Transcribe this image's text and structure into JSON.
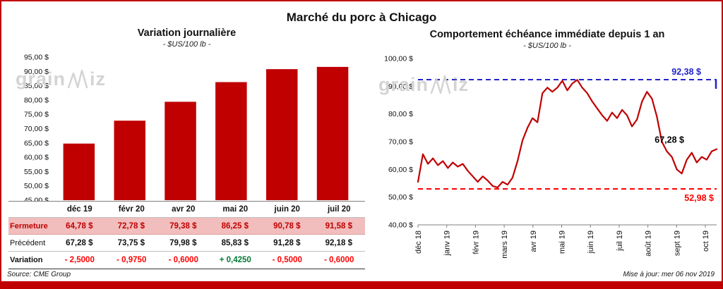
{
  "page": {
    "title": "Marché du porc à Chicago",
    "source": "Source: CME Group",
    "updated": "Mise à jour: mer 06 nov 2019",
    "watermark": {
      "prefix": "grain",
      "suffix": "iz"
    }
  },
  "colors": {
    "bar": "#C00000",
    "line": "#C00000",
    "resistance": "#2222CC",
    "support": "#FF0000",
    "highlight_row_bg": "#F2BDBD",
    "negative": "#FF0000",
    "positive": "#007A33",
    "accent_border": "#C00000"
  },
  "chart_data": [
    {
      "type": "bar",
      "title": "Variation journalière",
      "subtitle": "- $US/100 lb -",
      "categories": [
        "déc 19",
        "févr 20",
        "avr 20",
        "mai 20",
        "juin 20",
        "juil 20"
      ],
      "values": [
        64.78,
        72.78,
        79.38,
        86.25,
        90.78,
        91.58
      ],
      "ylim": [
        45,
        95
      ],
      "ytick_step": 5,
      "ytick_labels": [
        "95,00 $",
        "90,00 $",
        "85,00 $",
        "80,00 $",
        "75,00 $",
        "70,00 $",
        "65,00 $",
        "60,00 $",
        "55,00 $",
        "50,00 $",
        "45,00 $"
      ],
      "grid": false,
      "legend": false
    },
    {
      "type": "line",
      "title": "Comportement échéance immédiate depuis 1 an",
      "subtitle": "- $US/100 lb -",
      "x_labels": [
        "déc 18",
        "janv 19",
        "févr 19",
        "mars 19",
        "avr 19",
        "mai 19",
        "juin 19",
        "juil 19",
        "août 19",
        "sept 19",
        "oct 19"
      ],
      "ylim": [
        40,
        100
      ],
      "ytick_step": 10,
      "ytick_labels": [
        "100,00 $",
        "90,00 $",
        "80,00 $",
        "70,00 $",
        "60,00 $",
        "50,00 $",
        "40,00 $"
      ],
      "values": [
        55.5,
        65.5,
        62,
        64,
        61.5,
        63,
        60.5,
        62.5,
        61,
        62,
        59.5,
        57.5,
        55.5,
        57.5,
        56,
        54,
        53.5,
        55.5,
        54.5,
        57,
        63,
        70.5,
        75,
        78.5,
        77,
        87.5,
        89.5,
        88,
        89.5,
        92,
        88.5,
        91,
        92.3,
        89.5,
        87.5,
        84.5,
        82,
        79.5,
        77.5,
        80.5,
        78.5,
        81.5,
        79.5,
        75.5,
        78,
        84.5,
        88,
        85.5,
        79,
        70,
        66.5,
        64.5,
        60,
        58.5,
        63.5,
        66,
        62.5,
        64.5,
        63.5,
        66.5,
        67.3
      ],
      "resistance": {
        "value": 92.38,
        "label": "92,38 $"
      },
      "support": {
        "value": 52.98,
        "label": "52,98 $"
      },
      "last": {
        "value": 67.28,
        "label": "67,28 $"
      },
      "grid": false,
      "legend": false
    }
  ],
  "table": {
    "rows": [
      {
        "label": "Fermeture",
        "values": [
          "64,78 $",
          "72,78 $",
          "79,38 $",
          "86,25 $",
          "90,78 $",
          "91,58 $"
        ]
      },
      {
        "label": "Précédent",
        "values": [
          "67,28 $",
          "73,75 $",
          "79,98 $",
          "85,83 $",
          "91,28 $",
          "92,18 $"
        ]
      },
      {
        "label": "Variation",
        "values": [
          "- 2,5000",
          "- 0,9750",
          "- 0,6000",
          "+ 0,4250",
          "- 0,5000",
          "- 0,6000"
        ]
      }
    ]
  }
}
